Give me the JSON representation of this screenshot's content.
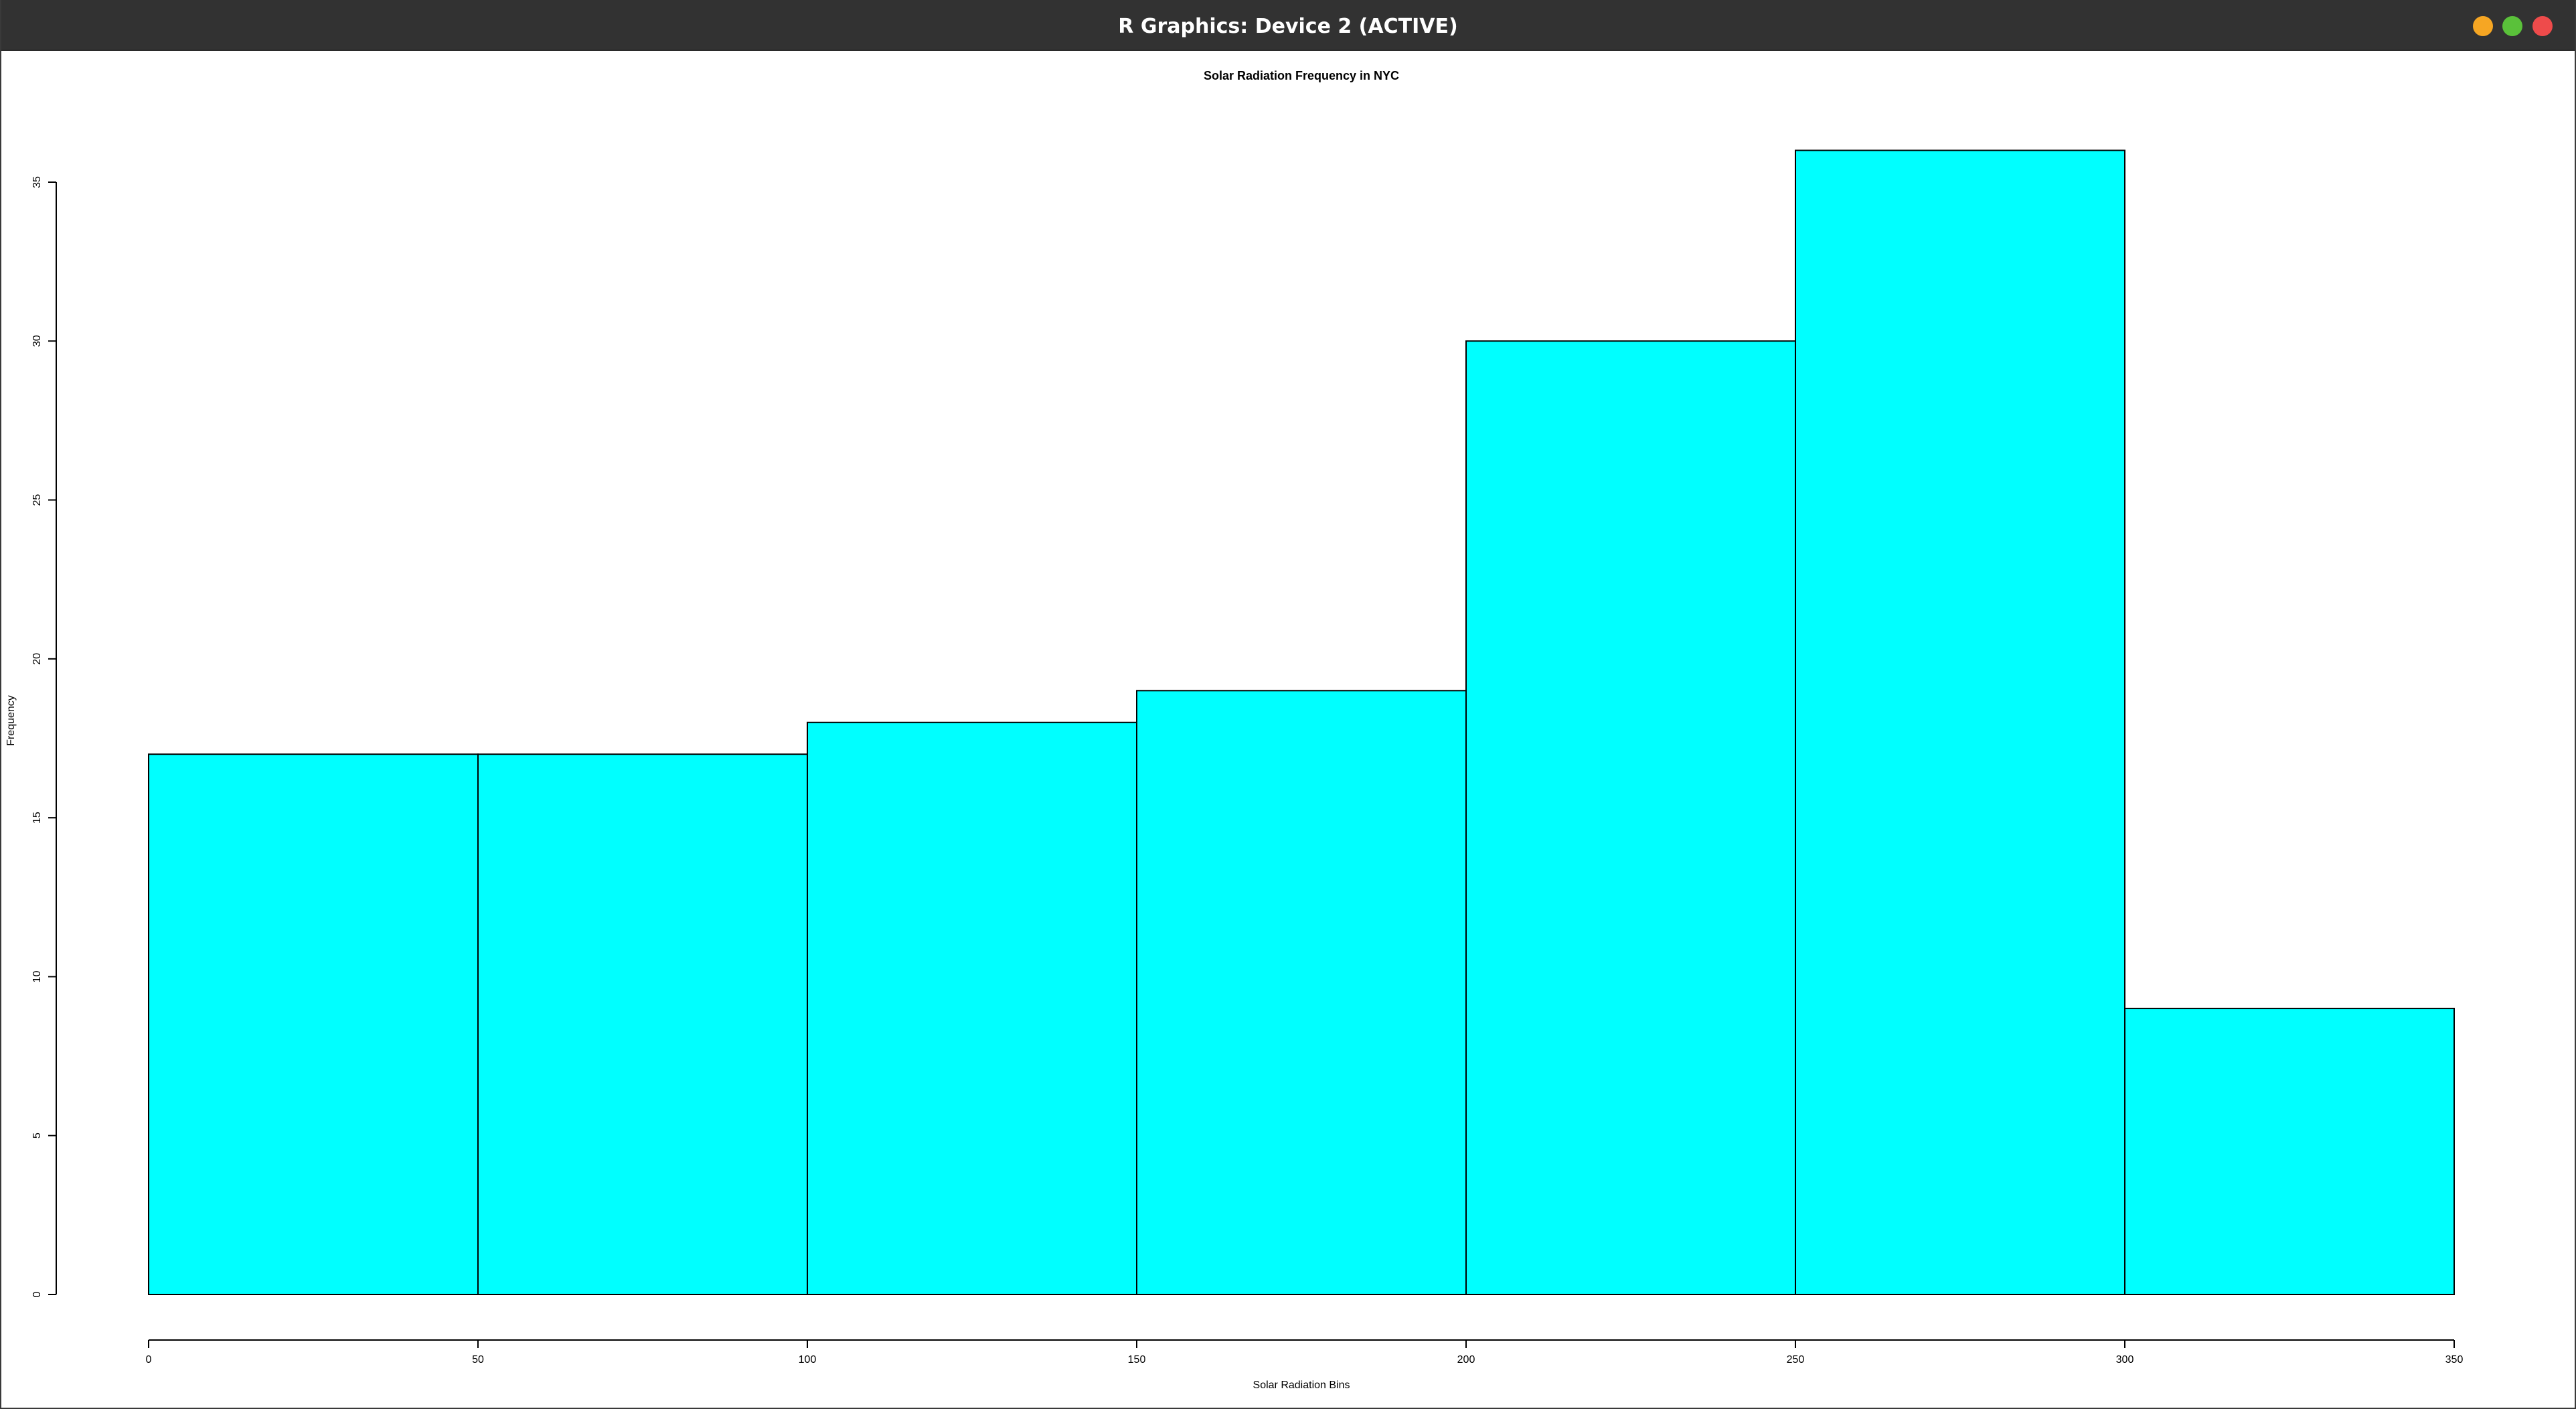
{
  "window": {
    "title": "R Graphics: Device 2 (ACTIVE)",
    "buttons": [
      {
        "name": "minimize",
        "color": "#f6a623"
      },
      {
        "name": "maximize",
        "color": "#5ac13a"
      },
      {
        "name": "close",
        "color": "#ee4b4b"
      }
    ]
  },
  "chart_data": {
    "type": "bar",
    "subtype": "histogram",
    "title": "Solar Radiation Frequency in NYC",
    "xlabel": "Solar Radiation Bins",
    "ylabel": "Frequency",
    "bin_edges": [
      0,
      50,
      100,
      150,
      200,
      250,
      300,
      350
    ],
    "values": [
      17,
      17,
      18,
      19,
      30,
      36,
      9
    ],
    "xlim": [
      0,
      350
    ],
    "ylim": [
      0,
      35
    ],
    "x_ticks": [
      0,
      50,
      100,
      150,
      200,
      250,
      300,
      350
    ],
    "y_ticks": [
      0,
      5,
      10,
      15,
      20,
      25,
      30,
      35
    ],
    "bar_color": "#00ffff",
    "edge_color": "#000000",
    "grid": false
  }
}
